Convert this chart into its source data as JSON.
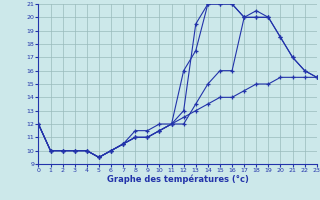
{
  "title": "Graphe des températures (°c)",
  "bg_color": "#cce8ea",
  "line_color": "#2233aa",
  "grid_color": "#99bbbb",
  "xlim": [
    0,
    23
  ],
  "ylim": [
    9,
    21
  ],
  "xticks": [
    0,
    1,
    2,
    3,
    4,
    5,
    6,
    7,
    8,
    9,
    10,
    11,
    12,
    13,
    14,
    15,
    16,
    17,
    18,
    19,
    20,
    21,
    22,
    23
  ],
  "yticks": [
    9,
    10,
    11,
    12,
    13,
    14,
    15,
    16,
    17,
    18,
    19,
    20,
    21
  ],
  "series": [
    {
      "x": [
        0,
        1,
        2,
        3,
        4,
        5,
        6,
        7,
        8,
        9,
        10,
        11,
        12,
        13,
        14,
        15,
        16,
        17,
        18,
        19
      ],
      "y": [
        12,
        10,
        10,
        10,
        10,
        9.5,
        10,
        10.5,
        11,
        11,
        11.5,
        12,
        13,
        19.5,
        21,
        21,
        21,
        20,
        20.5,
        20
      ]
    },
    {
      "x": [
        0,
        1,
        2,
        3,
        4,
        5,
        6,
        7,
        8,
        9,
        10,
        11,
        12,
        13,
        14,
        15,
        16,
        17,
        18,
        19,
        20,
        21,
        22,
        23
      ],
      "y": [
        12,
        10,
        10,
        10,
        10,
        9.5,
        10,
        10.5,
        11,
        11,
        11.5,
        12,
        16,
        17.5,
        21,
        21,
        21,
        20,
        20,
        20,
        18.5,
        17,
        16,
        15.5
      ]
    },
    {
      "x": [
        0,
        1,
        2,
        3,
        4,
        5,
        6,
        7,
        8,
        9,
        10,
        11,
        12,
        13,
        14,
        15,
        16,
        17,
        18,
        19,
        20,
        21,
        22,
        23
      ],
      "y": [
        12,
        10,
        10,
        10,
        10,
        9.5,
        10,
        10.5,
        11,
        11,
        11.5,
        12,
        12,
        13.5,
        15,
        16,
        16,
        20,
        20,
        20,
        18.5,
        17,
        16,
        15.5
      ]
    },
    {
      "x": [
        0,
        1,
        2,
        3,
        4,
        5,
        6,
        7,
        8,
        9,
        10,
        11,
        12,
        13,
        14,
        15,
        16,
        17,
        18,
        19,
        20,
        21,
        22,
        23
      ],
      "y": [
        12,
        10,
        10,
        10,
        10,
        9.5,
        10,
        10.5,
        11.5,
        11.5,
        12,
        12,
        12.5,
        13,
        13.5,
        14,
        14,
        14.5,
        15,
        15,
        15.5,
        15.5,
        15.5,
        15.5
      ]
    }
  ]
}
